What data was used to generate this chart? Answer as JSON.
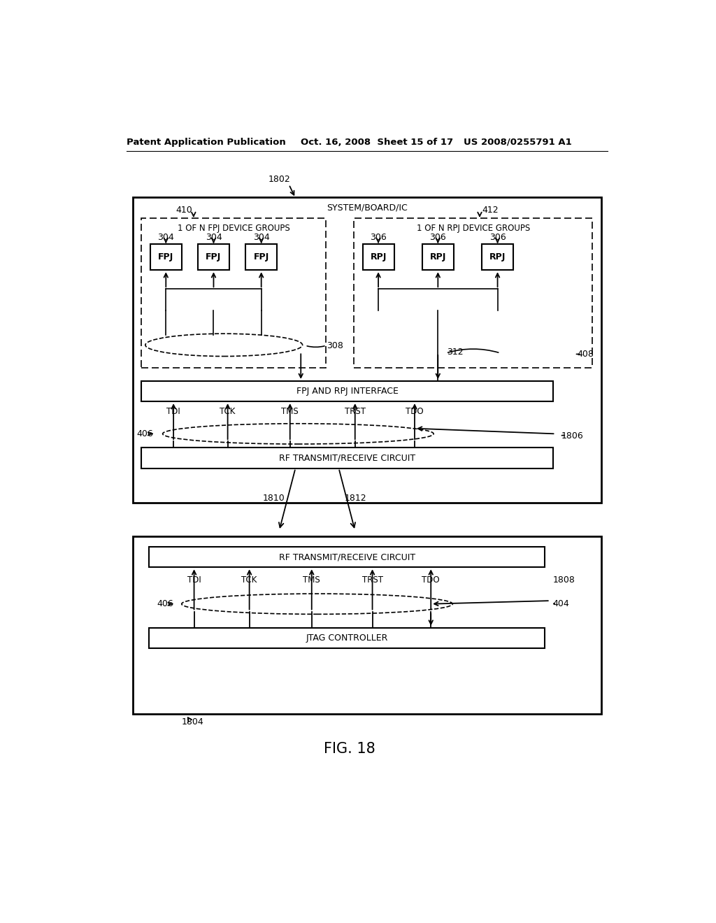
{
  "title_left": "Patent Application Publication",
  "title_mid": "Oct. 16, 2008  Sheet 15 of 17",
  "title_right": "US 2008/0255791 A1",
  "fig_label": "FIG. 18",
  "bg_color": "#ffffff",
  "labels": {
    "system_board_ic": "SYSTEM/BOARD/IC",
    "fpj_group": "1 OF N FPJ DEVICE GROUPS",
    "rpj_group": "1 OF N RPJ DEVICE GROUPS",
    "fpj": "FPJ",
    "rpj": "RPJ",
    "fpj_rpj_interface": "FPJ AND RPJ INTERFACE",
    "rf_tx_rx_upper": "RF TRANSMIT/RECEIVE CIRCUIT",
    "rf_tx_rx_lower": "RF TRANSMIT/RECEIVE CIRCUIT",
    "jtag_controller": "JTAG CONTROLLER",
    "tdi": "TDI",
    "tck": "TCK",
    "tms": "TMS",
    "trst": "TRST",
    "tdo": "TDO",
    "n1802": "1802",
    "n410": "410",
    "n412": "412",
    "n304a": "304",
    "n304b": "304",
    "n304c": "304",
    "n306a": "306",
    "n306b": "306",
    "n306c": "306",
    "n308": "308",
    "n312": "312",
    "n406": "406",
    "n408": "408",
    "n1806": "1806",
    "n1810": "1810",
    "n1812": "1812",
    "n406b": "406",
    "n404": "404",
    "n1808": "1808",
    "n1804": "1804"
  }
}
